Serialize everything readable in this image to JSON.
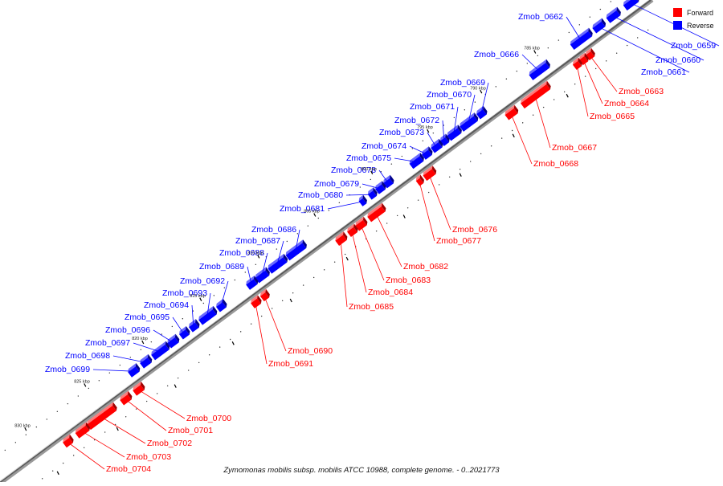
{
  "caption": "Zymomonas mobilis subsp. mobilis ATCC 10988, complete genome. - 0..2021773",
  "legend": [
    {
      "label": "Forward",
      "color": "#ff0000"
    },
    {
      "label": "Reverse",
      "color": "#0000ff"
    }
  ],
  "colors": {
    "forward": "#ff0000",
    "reverse": "#0000ff",
    "axis": "#888888",
    "text": "#111111"
  },
  "ticks": [
    "785 kbp",
    "790 kbp",
    "795 kbp",
    "800 kbp",
    "805 kbp",
    "810 kbp",
    "815 kbp",
    "820 kbp",
    "825 kbp",
    "830 kbp"
  ],
  "genes_forward": [
    "Zmob_0663",
    "Zmob_0664",
    "Zmob_0665",
    "Zmob_0667",
    "Zmob_0668",
    "Zmob_0676",
    "Zmob_0677",
    "Zmob_0682",
    "Zmob_0683",
    "Zmob_0684",
    "Zmob_0685",
    "Zmob_0690",
    "Zmob_0691",
    "Zmob_0700",
    "Zmob_0701",
    "Zmob_0702",
    "Zmob_0703",
    "Zmob_0704"
  ],
  "genes_reverse": [
    "Zmob_0659",
    "Zmob_0660",
    "Zmob_0661",
    "Zmob_0662",
    "Zmob_0666",
    "Zmob_0669",
    "Zmob_0670",
    "Zmob_0671",
    "Zmob_0672",
    "Zmob_0673",
    "Zmob_0674",
    "Zmob_0675",
    "Zmob_0678",
    "Zmob_0679",
    "Zmob_0680",
    "Zmob_0681",
    "Zmob_0686",
    "Zmob_0687",
    "Zmob_0688",
    "Zmob_0689",
    "Zmob_0692",
    "Zmob_0693",
    "Zmob_0694",
    "Zmob_0695",
    "Zmob_0696",
    "Zmob_0697",
    "Zmob_0698",
    "Zmob_0699"
  ]
}
